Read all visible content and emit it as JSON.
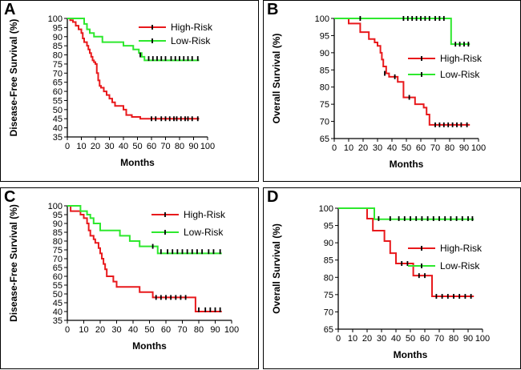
{
  "colors": {
    "high": "#e8191c",
    "low": "#2ee82e",
    "axis": "#000000"
  },
  "chart_data": [
    {
      "panel": "A",
      "type": "line",
      "step": true,
      "xlabel": "Months",
      "ylabel": "Disease-Free Survival (%)",
      "xlim": [
        0,
        100
      ],
      "ylim": [
        35,
        100
      ],
      "xticks": [
        "0",
        "10",
        "20",
        "30",
        "40",
        "50",
        "60",
        "70",
        "80",
        "90",
        "100"
      ],
      "yticks": [
        "35",
        "40",
        "45",
        "50",
        "55",
        "60",
        "65",
        "70",
        "75",
        "80",
        "85",
        "90",
        "95",
        "100"
      ],
      "legend_position": "top-right",
      "series": [
        {
          "name": "High-Risk",
          "color_key": "high",
          "points": [
            [
              0,
              100
            ],
            [
              2,
              99
            ],
            [
              4,
              98
            ],
            [
              6,
              96
            ],
            [
              8,
              94
            ],
            [
              10,
              92
            ],
            [
              11,
              89
            ],
            [
              12,
              87
            ],
            [
              14,
              85
            ],
            [
              15,
              83
            ],
            [
              16,
              81
            ],
            [
              17,
              79
            ],
            [
              18,
              77
            ],
            [
              19,
              76
            ],
            [
              20,
              75
            ],
            [
              21,
              70
            ],
            [
              22,
              66
            ],
            [
              23,
              63
            ],
            [
              24,
              62
            ],
            [
              26,
              60
            ],
            [
              28,
              58
            ],
            [
              30,
              56
            ],
            [
              32,
              54
            ],
            [
              34,
              52
            ],
            [
              40,
              50
            ],
            [
              42,
              47
            ],
            [
              46,
              46
            ],
            [
              52,
              45
            ],
            [
              94,
              45
            ]
          ],
          "censored": [
            [
              60,
              45
            ],
            [
              63,
              45
            ],
            [
              67,
              45
            ],
            [
              70,
              45
            ],
            [
              73,
              45
            ],
            [
              76,
              45
            ],
            [
              78,
              45
            ],
            [
              81,
              45
            ],
            [
              84,
              45
            ],
            [
              86,
              45
            ],
            [
              89,
              45
            ],
            [
              93,
              45
            ]
          ]
        },
        {
          "name": "Low-Risk",
          "color_key": "low",
          "points": [
            [
              0,
              100
            ],
            [
              10,
              100
            ],
            [
              12,
              97
            ],
            [
              14,
              94
            ],
            [
              16,
              92
            ],
            [
              19,
              90
            ],
            [
              25,
              87
            ],
            [
              36,
              87
            ],
            [
              40,
              85
            ],
            [
              47,
              83
            ],
            [
              51,
              81
            ],
            [
              53,
              79
            ],
            [
              55,
              77
            ],
            [
              94,
              77
            ]
          ],
          "censored": [
            [
              52,
              80
            ],
            [
              58,
              78
            ],
            [
              61,
              78
            ],
            [
              64,
              78
            ],
            [
              67,
              78
            ],
            [
              70,
              78
            ],
            [
              74,
              78
            ],
            [
              77,
              78
            ],
            [
              80,
              78
            ],
            [
              83,
              78
            ],
            [
              86,
              78
            ],
            [
              89,
              78
            ],
            [
              93,
              78
            ]
          ]
        }
      ]
    },
    {
      "panel": "B",
      "type": "line",
      "step": true,
      "xlabel": "Months",
      "ylabel": "Overall Survival (%)",
      "xlim": [
        0,
        100
      ],
      "ylim": [
        65,
        100
      ],
      "xticks": [
        "0",
        "10",
        "20",
        "30",
        "40",
        "50",
        "60",
        "70",
        "80",
        "90",
        "100"
      ],
      "yticks": [
        "65",
        "70",
        "75",
        "80",
        "85",
        "90",
        "95",
        "100"
      ],
      "legend_position": "middle-right",
      "series": [
        {
          "name": "High-Risk",
          "color_key": "high",
          "points": [
            [
              0,
              100
            ],
            [
              10,
              98.5
            ],
            [
              18,
              96
            ],
            [
              24,
              94
            ],
            [
              28,
              93
            ],
            [
              30,
              92
            ],
            [
              32,
              90
            ],
            [
              33,
              88
            ],
            [
              34,
              86
            ],
            [
              36,
              84
            ],
            [
              38,
              83
            ],
            [
              44,
              81.5
            ],
            [
              48,
              77
            ],
            [
              56,
              75
            ],
            [
              62,
              74
            ],
            [
              64,
              72
            ],
            [
              66,
              69
            ],
            [
              94,
              69
            ]
          ],
          "censored": [
            [
              35,
              84
            ],
            [
              42,
              83
            ],
            [
              52,
              77
            ],
            [
              70,
              69
            ],
            [
              73,
              69
            ],
            [
              76,
              69
            ],
            [
              79,
              69
            ],
            [
              82,
              69
            ],
            [
              85,
              69
            ],
            [
              88,
              69
            ],
            [
              92,
              69
            ]
          ]
        },
        {
          "name": "Low-Risk",
          "color_key": "low",
          "points": [
            [
              0,
              100
            ],
            [
              80,
              100
            ],
            [
              81,
              92.5
            ],
            [
              94,
              92.5
            ]
          ],
          "censored": [
            [
              18,
              100
            ],
            [
              48,
              100
            ],
            [
              51,
              100
            ],
            [
              54,
              100
            ],
            [
              57,
              100
            ],
            [
              60,
              100
            ],
            [
              63,
              100
            ],
            [
              66,
              100
            ],
            [
              70,
              100
            ],
            [
              73,
              100
            ],
            [
              76,
              100
            ],
            [
              84,
              92.5
            ],
            [
              87,
              92.5
            ],
            [
              90,
              92.5
            ],
            [
              93,
              92.5
            ]
          ]
        }
      ]
    },
    {
      "panel": "C",
      "type": "line",
      "step": true,
      "xlabel": "Months",
      "ylabel": "Disease-Free Survival (%)",
      "xlim": [
        0,
        100
      ],
      "ylim": [
        35,
        100
      ],
      "xticks": [
        "0",
        "10",
        "20",
        "30",
        "40",
        "50",
        "60",
        "70",
        "80",
        "90",
        "100"
      ],
      "yticks": [
        "35",
        "40",
        "45",
        "50",
        "55",
        "60",
        "65",
        "70",
        "75",
        "80",
        "85",
        "90",
        "95",
        "100"
      ],
      "legend_position": "top-right",
      "series": [
        {
          "name": "High-Risk",
          "color_key": "high",
          "points": [
            [
              0,
              100
            ],
            [
              2,
              97
            ],
            [
              8,
              95
            ],
            [
              10,
              93
            ],
            [
              12,
              90
            ],
            [
              13,
              86
            ],
            [
              14,
              83
            ],
            [
              16,
              81
            ],
            [
              17,
              79
            ],
            [
              19,
              76
            ],
            [
              20,
              73
            ],
            [
              21,
              70
            ],
            [
              22,
              67
            ],
            [
              23,
              64
            ],
            [
              24,
              60
            ],
            [
              28,
              57
            ],
            [
              30,
              54
            ],
            [
              44,
              51
            ],
            [
              52,
              48
            ],
            [
              77,
              48
            ],
            [
              78,
              40
            ],
            [
              94,
              40
            ]
          ],
          "censored": [
            [
              54,
              48
            ],
            [
              57,
              48
            ],
            [
              60,
              48
            ],
            [
              63,
              48
            ],
            [
              66,
              48
            ],
            [
              69,
              48
            ],
            [
              72,
              48
            ],
            [
              80,
              41
            ],
            [
              84,
              41
            ],
            [
              87,
              41
            ],
            [
              90,
              41
            ],
            [
              93,
              41
            ]
          ]
        },
        {
          "name": "Low-Risk",
          "color_key": "low",
          "points": [
            [
              0,
              100
            ],
            [
              6,
              100
            ],
            [
              8,
              97
            ],
            [
              12,
              95
            ],
            [
              14,
              93
            ],
            [
              16,
              90
            ],
            [
              20,
              86
            ],
            [
              32,
              83
            ],
            [
              38,
              80
            ],
            [
              44,
              77
            ],
            [
              54,
              77
            ],
            [
              55,
              73
            ],
            [
              94,
              73
            ]
          ],
          "censored": [
            [
              52,
              77
            ],
            [
              57,
              74
            ],
            [
              61,
              74
            ],
            [
              64,
              74
            ],
            [
              67,
              74
            ],
            [
              70,
              74
            ],
            [
              73,
              74
            ],
            [
              76,
              74
            ],
            [
              79,
              74
            ],
            [
              82,
              74
            ],
            [
              86,
              74
            ],
            [
              89,
              74
            ],
            [
              93,
              74
            ]
          ]
        }
      ]
    },
    {
      "panel": "D",
      "type": "line",
      "step": true,
      "xlabel": "Months",
      "ylabel": "Overall Survival (%)",
      "xlim": [
        0,
        100
      ],
      "ylim": [
        65,
        100
      ],
      "xticks": [
        "0",
        "10",
        "20",
        "30",
        "40",
        "50",
        "60",
        "70",
        "80",
        "90",
        "100"
      ],
      "yticks": [
        "65",
        "70",
        "75",
        "80",
        "85",
        "90",
        "95",
        "100"
      ],
      "legend_position": "middle-right",
      "series": [
        {
          "name": "High-Risk",
          "color_key": "high",
          "points": [
            [
              0,
              100
            ],
            [
              20,
              97
            ],
            [
              24,
              93.5
            ],
            [
              32,
              90.5
            ],
            [
              36,
              87
            ],
            [
              40,
              84
            ],
            [
              52,
              80.5
            ],
            [
              65,
              74.5
            ],
            [
              94,
              74.5
            ]
          ],
          "censored": [
            [
              44,
              84
            ],
            [
              48,
              84
            ],
            [
              56,
              80.5
            ],
            [
              60,
              80.5
            ],
            [
              68,
              74.5
            ],
            [
              72,
              74.5
            ],
            [
              76,
              74.5
            ],
            [
              80,
              74.5
            ],
            [
              84,
              74.5
            ],
            [
              88,
              74.5
            ],
            [
              92,
              74.5
            ]
          ]
        },
        {
          "name": "Low-Risk",
          "color_key": "low",
          "points": [
            [
              0,
              100
            ],
            [
              24,
              100
            ],
            [
              25,
              96.8
            ],
            [
              94,
              96.8
            ]
          ],
          "censored": [
            [
              28,
              97
            ],
            [
              36,
              97
            ],
            [
              42,
              97
            ],
            [
              46,
              97
            ],
            [
              50,
              97
            ],
            [
              54,
              97
            ],
            [
              58,
              97
            ],
            [
              62,
              97
            ],
            [
              66,
              97
            ],
            [
              70,
              97
            ],
            [
              74,
              97
            ],
            [
              78,
              97
            ],
            [
              82,
              97
            ],
            [
              86,
              97
            ],
            [
              90,
              97
            ],
            [
              93,
              97
            ]
          ]
        }
      ]
    }
  ]
}
